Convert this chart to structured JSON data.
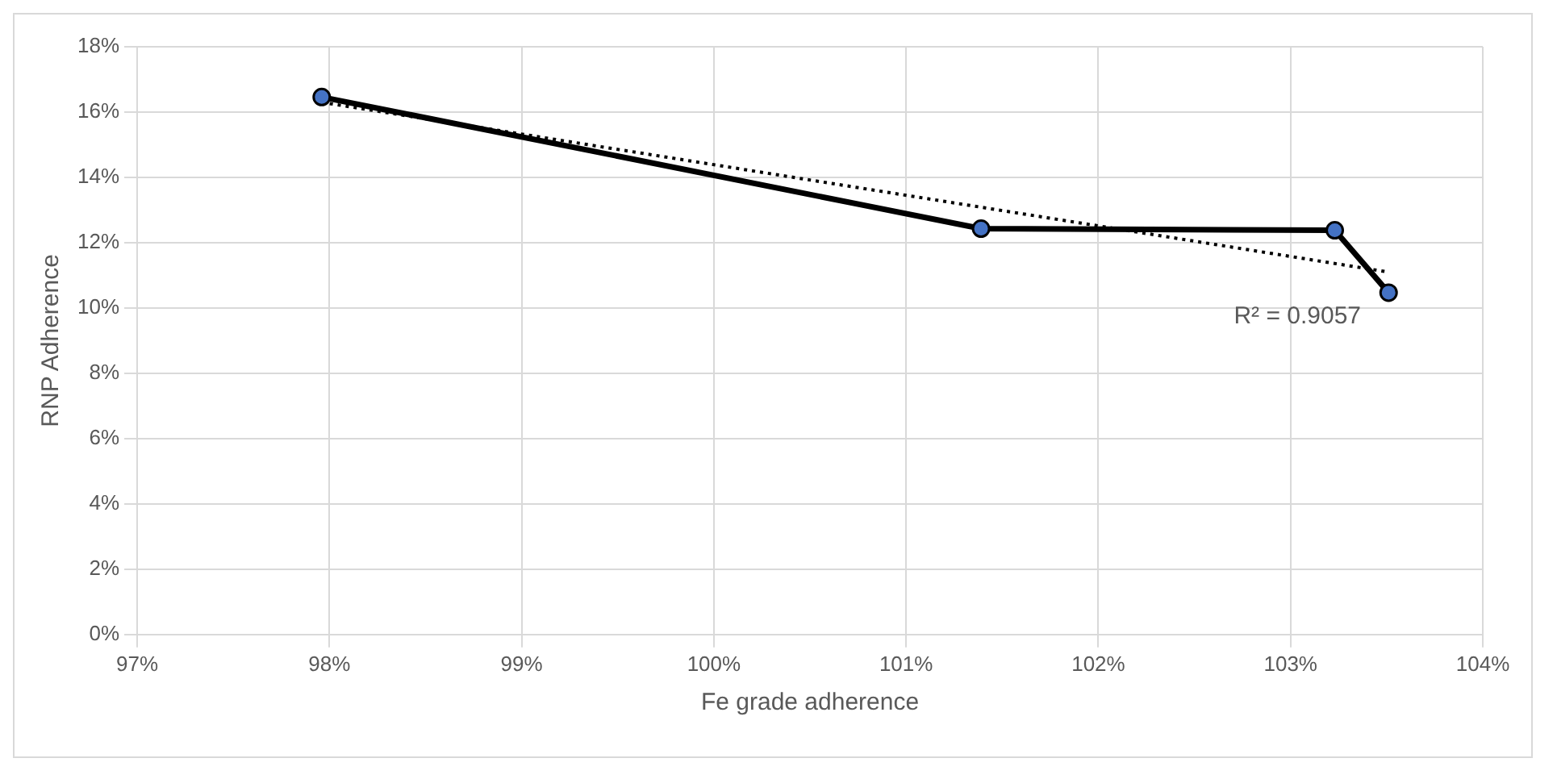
{
  "chart_data": {
    "type": "line",
    "xlabel": "Fe grade adherence",
    "ylabel": "RNP Adherence",
    "series": [
      {
        "color": "#000000",
        "marker": "circle",
        "line_style": "solid",
        "x": [
          97.96,
          101.39,
          103.23,
          103.51
        ],
        "values": [
          16.46,
          12.43,
          12.38,
          10.47
        ]
      },
      {
        "type": "line",
        "color": "#000000",
        "marker": "none",
        "line_style": "dotted",
        "x": [
          97.96,
          103.51
        ],
        "values": [
          16.3,
          11.1
        ]
      }
    ],
    "xlim": [
      97,
      104
    ],
    "xticks": [
      {
        "value": 97,
        "label": "97%"
      },
      {
        "value": 98,
        "label": "98%"
      },
      {
        "value": 99,
        "label": "99%"
      },
      {
        "value": 100,
        "label": "100%"
      },
      {
        "value": 101,
        "label": "101%"
      },
      {
        "value": 102,
        "label": "102%"
      },
      {
        "value": 103,
        "label": "103%"
      },
      {
        "value": 104,
        "label": "104%"
      }
    ],
    "ylim": [
      0,
      18
    ],
    "yticks": [
      {
        "value": 0,
        "label": "0%"
      },
      {
        "value": 2,
        "label": "2%"
      },
      {
        "value": 4,
        "label": "4%"
      },
      {
        "value": 6,
        "label": "6%"
      },
      {
        "value": 8,
        "label": "8%"
      },
      {
        "value": 10,
        "label": "10%"
      },
      {
        "value": 12,
        "label": "12%"
      },
      {
        "value": 14,
        "label": "14%"
      },
      {
        "value": 16,
        "label": "16%"
      },
      {
        "value": 18,
        "label": "18%"
      }
    ],
    "grid": true,
    "legend": false,
    "annotations": [
      "R² = 0.9057"
    ]
  }
}
